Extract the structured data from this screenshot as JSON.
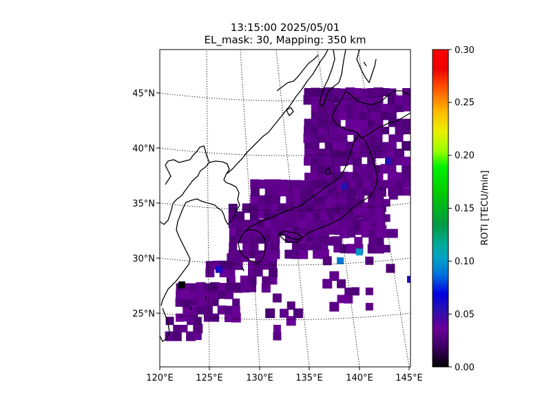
{
  "title": {
    "line1": "13:15:00 2025/05/01",
    "line2": "EL_mask: 30, Mapping: 350 km"
  },
  "map": {
    "lon_range": [
      120,
      145
    ],
    "lat_range": [
      20,
      49
    ],
    "lon_ticks": [
      "120°E",
      "125°E",
      "130°E",
      "135°E",
      "140°E",
      "145°E"
    ],
    "lat_ticks": [
      "25°N",
      "30°N",
      "35°N",
      "40°N",
      "45°N"
    ],
    "graticule": "dotted",
    "coastline_color": "#000000"
  },
  "colorbar": {
    "label": "ROTI [TECU/min]",
    "ticks": [
      "0.00",
      "0.05",
      "0.10",
      "0.15",
      "0.20",
      "0.25",
      "0.30"
    ],
    "range": [
      0,
      0.3
    ],
    "colormap": "nipy_spectral"
  },
  "chart_data": {
    "type": "heatmap",
    "title": "13:15:00 2025/05/01 EL_mask: 30, Mapping: 350 km",
    "value_label": "ROTI [TECU/min]",
    "vmin": 0,
    "vmax": 0.3,
    "dominant_value": 0.03,
    "notable_cells": [
      {
        "lon": 138.0,
        "lat": 29.7,
        "value": 0.09
      },
      {
        "lon": 139.9,
        "lat": 30.5,
        "value": 0.1
      },
      {
        "lon": 125.9,
        "lat": 28.9,
        "value": 0.06
      },
      {
        "lon": 138.4,
        "lat": 36.5,
        "value": 0.055
      },
      {
        "lon": 145.0,
        "lat": 28.0,
        "value": 0.06
      },
      {
        "lon": 142.8,
        "lat": 38.8,
        "value": 0.055
      },
      {
        "lon": 122.2,
        "lat": 27.5,
        "value": 0.0
      }
    ]
  }
}
